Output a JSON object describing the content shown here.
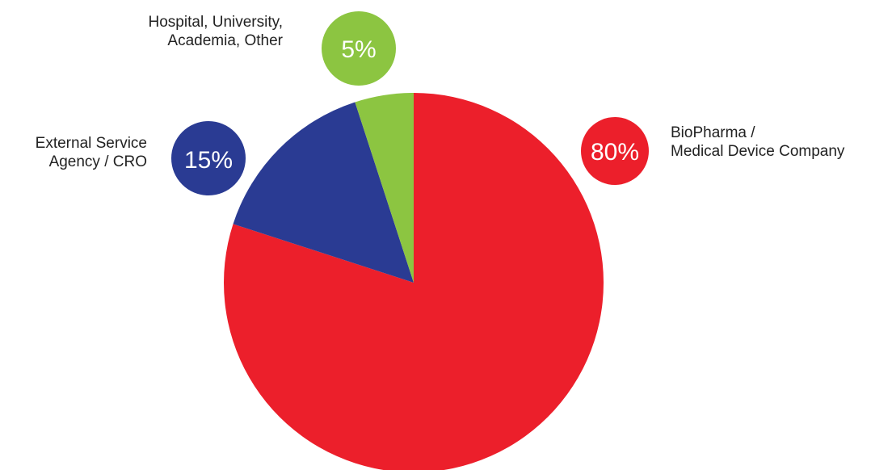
{
  "chart_data": {
    "type": "pie",
    "title": "",
    "slices": [
      {
        "label_lines": [
          "BioPharma /",
          "Medical Device Company"
        ],
        "value": 80,
        "value_label": "80%",
        "color": "#ec1f2b"
      },
      {
        "label_lines": [
          "External Service",
          "Agency / CRO"
        ],
        "value": 15,
        "value_label": "15%",
        "color": "#2a3b93"
      },
      {
        "label_lines": [
          "Hospital, University,",
          "Academia, Other"
        ],
        "value": 5,
        "value_label": "5%",
        "color": "#8cc541"
      }
    ],
    "legend": "callout-bubbles",
    "start_angle_deg": 0,
    "direction": "clockwise"
  }
}
